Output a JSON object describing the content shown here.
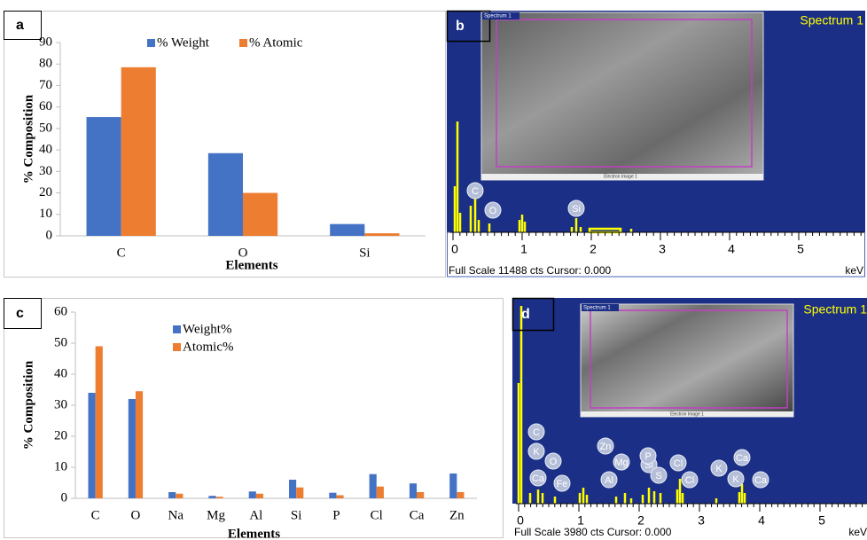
{
  "chart_data": [
    {
      "type": "bar",
      "label": "a",
      "xlabel": "Elements",
      "ylabel": "% Composition",
      "categories": [
        "C",
        "O",
        "Si"
      ],
      "series": [
        {
          "name": "% Weight",
          "color": "#4472c4",
          "values": [
            55.3,
            38.5,
            5.5
          ]
        },
        {
          "name": "% Atomic",
          "color": "#ed7d31",
          "values": [
            78.5,
            20,
            1.2
          ]
        }
      ],
      "ylim": [
        0,
        90
      ],
      "yticks": [
        0,
        10,
        20,
        30,
        40,
        50,
        60,
        70,
        80,
        90
      ],
      "grid": false,
      "legend": "top"
    },
    {
      "type": "bar",
      "label": "c",
      "xlabel": "Elements",
      "ylabel": "% Composition",
      "categories": [
        "C",
        "O",
        "Na",
        "Mg",
        "Al",
        "Si",
        "P",
        "Cl",
        "Ca",
        "Zn"
      ],
      "series": [
        {
          "name": "Weight%",
          "color": "#4472c4",
          "values": [
            34,
            32,
            2,
            0.8,
            2.2,
            6,
            1.8,
            7.8,
            4.8,
            8
          ]
        },
        {
          "name": "Atomic%",
          "color": "#ed7d31",
          "values": [
            49,
            34.5,
            1.5,
            0.5,
            1.5,
            3.5,
            1,
            3.8,
            2,
            2
          ]
        }
      ],
      "ylim": [
        0,
        60
      ],
      "yticks": [
        0,
        10,
        20,
        30,
        40,
        50,
        60
      ],
      "grid": false,
      "legend": "upper center"
    }
  ],
  "spectra": [
    {
      "label": "b",
      "title": "Spectrum 1",
      "image_tag": "Spectrum 1",
      "image_caption": "Electron Image 1",
      "ticks": [
        0,
        1,
        2,
        3,
        4,
        5
      ],
      "unit": "keV",
      "footer": "Full Scale 11488 cts Cursor: 0.000",
      "peaks": [
        "C",
        "O",
        "Si"
      ]
    },
    {
      "label": "d",
      "title": "Spectrum 1",
      "image_tag": "Spectrum 1",
      "image_caption": "Electron Image 1",
      "ticks": [
        0,
        1,
        2,
        3,
        4,
        5
      ],
      "unit": "keV",
      "footer": "Full Scale 3980 cts Cursor: 0.000",
      "peaks": [
        "C",
        "K",
        "O",
        "Ca",
        "Fe",
        "Zn",
        "Mg",
        "Al",
        "Si",
        "P",
        "S",
        "Cl",
        "Cl",
        "K",
        "K",
        "Ca",
        "Ca"
      ]
    }
  ]
}
